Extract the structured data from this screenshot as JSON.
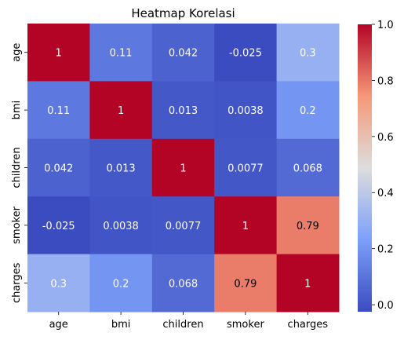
{
  "chart_data": {
    "type": "heatmap",
    "title": "Heatmap Korelasi",
    "xlabel": "",
    "ylabel": "",
    "x_categories": [
      "age",
      "bmi",
      "children",
      "smoker",
      "charges"
    ],
    "y_categories": [
      "age",
      "bmi",
      "children",
      "smoker",
      "charges"
    ],
    "values": [
      [
        1,
        0.11,
        0.042,
        -0.025,
        0.3
      ],
      [
        0.11,
        1,
        0.013,
        0.0038,
        0.2
      ],
      [
        0.042,
        0.013,
        1,
        0.0077,
        0.068
      ],
      [
        -0.025,
        0.0038,
        0.0077,
        1,
        0.79
      ],
      [
        0.3,
        0.2,
        0.068,
        0.79,
        1
      ]
    ],
    "annotations": [
      [
        "1",
        "0.11",
        "0.042",
        "-0.025",
        "0.3"
      ],
      [
        "0.11",
        "1",
        "0.013",
        "0.0038",
        "0.2"
      ],
      [
        "0.042",
        "0.013",
        "1",
        "0.0077",
        "0.068"
      ],
      [
        "-0.025",
        "0.0038",
        "0.0077",
        "1",
        "0.79"
      ],
      [
        "0.3",
        "0.2",
        "0.068",
        "0.79",
        "1"
      ]
    ],
    "colormap": "coolwarm",
    "vmin": -0.025,
    "vmax": 1,
    "colorbar_ticks": [
      0.0,
      0.2,
      0.4,
      0.6,
      0.8,
      1.0
    ],
    "colorbar_tick_labels": [
      "0.0",
      "0.2",
      "0.4",
      "0.6",
      "0.8",
      "1.0"
    ],
    "grid": false,
    "legend": "colorbar-right"
  }
}
